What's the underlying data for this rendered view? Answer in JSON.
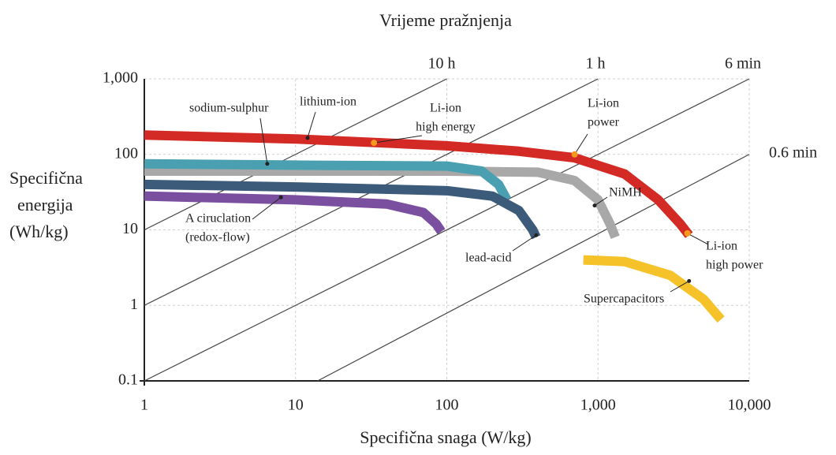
{
  "chart_data": {
    "type": "line",
    "title": "Vrijeme pražnjenja",
    "xlabel": "Specifična snaga (W/kg)",
    "ylabel": [
      "Specifična",
      "energija",
      "(Wh/kg)"
    ],
    "log_x": true,
    "log_y": true,
    "grid": true,
    "xlim": [
      1,
      10000
    ],
    "ylim": [
      0.1,
      1000
    ],
    "xticks": [
      1,
      10,
      100,
      {
        "value": 1000,
        "label": "1,000"
      },
      {
        "value": 10000,
        "label": "10,000"
      }
    ],
    "yticks": [
      0.1,
      1,
      10,
      100,
      {
        "value": 1000,
        "label": "1,000"
      }
    ],
    "time_lines": [
      {
        "label": "10 h",
        "x": [
          1,
          100
        ],
        "y": [
          10,
          1000
        ]
      },
      {
        "label": "1 h",
        "x": [
          1,
          1000
        ],
        "y": [
          1,
          1000
        ]
      },
      {
        "label": "6 min",
        "x": [
          1,
          10000
        ],
        "y": [
          0.1,
          1000
        ]
      },
      {
        "label": "0.6 min",
        "x": [
          14,
          10000
        ],
        "y": [
          0.1,
          100
        ]
      }
    ],
    "series": [
      {
        "color": "#d42a25",
        "x": [
          1,
          10,
          100,
          300,
          700,
          1500,
          2500,
          3500,
          4000
        ],
        "values": [
          180,
          160,
          130,
          110,
          90,
          55,
          25,
          12,
          8.5
        ]
      },
      {
        "color": "#a8a8a8",
        "x": [
          1,
          100,
          400,
          700,
          1000,
          1200,
          1300
        ],
        "values": [
          60,
          60,
          58,
          45,
          25,
          12,
          8
        ]
      },
      {
        "color": "#4aa0b0",
        "x": [
          1,
          10,
          100,
          170,
          220,
          250
        ],
        "values": [
          75,
          72,
          70,
          60,
          40,
          25
        ]
      },
      {
        "color": "#3c5a7a",
        "x": [
          1,
          10,
          100,
          200,
          300,
          370,
          390
        ],
        "values": [
          40,
          37,
          33,
          28,
          18,
          10,
          8
        ]
      },
      {
        "color": "#7a4fa0",
        "x": [
          1,
          10,
          40,
          70,
          85,
          92
        ],
        "values": [
          28,
          25,
          22,
          17,
          12,
          9.5
        ]
      },
      {
        "color": "#f5c22a",
        "x": [
          800,
          1500,
          3000,
          5000,
          6500
        ],
        "values": [
          4,
          3.8,
          2.5,
          1.2,
          0.65
        ]
      }
    ],
    "annotations": [
      {
        "text": [
          "sodium-sulphur"
        ],
        "x": 6.5,
        "y": 75,
        "color": "#222222"
      },
      {
        "text": [
          "lithium-ion"
        ],
        "x": 12,
        "y": 165,
        "color": "#222222"
      },
      {
        "text": [
          "Li-ion",
          "high energy"
        ],
        "x": 33,
        "y": 142,
        "color": "#f39a1e"
      },
      {
        "text": [
          "Li-ion",
          "power"
        ],
        "x": 700,
        "y": 100,
        "color": "#f39a1e"
      },
      {
        "text": [
          "NiMH"
        ],
        "x": 950,
        "y": 21,
        "color": "#222222"
      },
      {
        "text": [
          "A ciruclation",
          "(redox-flow)"
        ],
        "x": 8,
        "y": 27,
        "color": "#222222"
      },
      {
        "text": [
          "lead-acid"
        ],
        "x": 390,
        "y": 8.5,
        "color": "#222222"
      },
      {
        "text": [
          "Li-ion",
          "high power"
        ],
        "x": 3900,
        "y": 9,
        "color": "#f39a1e"
      },
      {
        "text": [
          "Supercapacitors"
        ],
        "x": 4000,
        "y": 2.1,
        "color": "#222222"
      }
    ]
  }
}
